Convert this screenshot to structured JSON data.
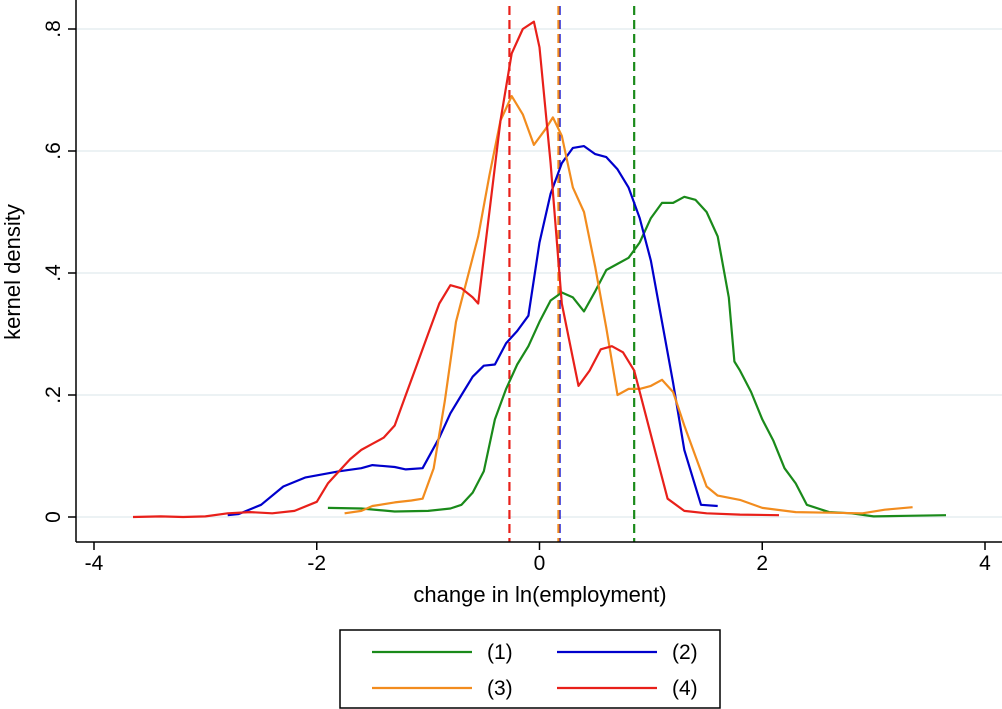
{
  "chart_data": {
    "type": "line",
    "title": "",
    "xlabel": "change in ln(employment)",
    "ylabel": "kernel density",
    "xlim": [
      -4,
      4
    ],
    "ylim": [
      0,
      0.8
    ],
    "x_ticks": [
      -4,
      -2,
      0,
      2,
      4
    ],
    "x_tick_labels": [
      "-4",
      "-2",
      "0",
      "2",
      "4"
    ],
    "y_ticks": [
      0,
      0.2,
      0.4,
      0.6,
      0.8
    ],
    "y_tick_labels": [
      "0",
      ".2",
      ".4",
      ".6",
      ".8"
    ],
    "grid": "horizontal",
    "legend_position": "bottom",
    "series": [
      {
        "name": "(1)",
        "color": "#1a8a1a",
        "mean": 0.85,
        "points": [
          [
            -1.9,
            0.015
          ],
          [
            -1.6,
            0.014
          ],
          [
            -1.3,
            0.009
          ],
          [
            -1.0,
            0.01
          ],
          [
            -0.8,
            0.014
          ],
          [
            -0.7,
            0.02
          ],
          [
            -0.6,
            0.04
          ],
          [
            -0.5,
            0.075
          ],
          [
            -0.4,
            0.16
          ],
          [
            -0.3,
            0.21
          ],
          [
            -0.2,
            0.25
          ],
          [
            -0.1,
            0.28
          ],
          [
            0.0,
            0.32
          ],
          [
            0.1,
            0.355
          ],
          [
            0.2,
            0.368
          ],
          [
            0.3,
            0.36
          ],
          [
            0.4,
            0.337
          ],
          [
            0.5,
            0.37
          ],
          [
            0.6,
            0.405
          ],
          [
            0.7,
            0.415
          ],
          [
            0.8,
            0.425
          ],
          [
            0.9,
            0.45
          ],
          [
            1.0,
            0.49
          ],
          [
            1.1,
            0.515
          ],
          [
            1.2,
            0.515
          ],
          [
            1.3,
            0.525
          ],
          [
            1.4,
            0.52
          ],
          [
            1.5,
            0.5
          ],
          [
            1.6,
            0.46
          ],
          [
            1.7,
            0.36
          ],
          [
            1.75,
            0.255
          ],
          [
            1.8,
            0.24
          ],
          [
            1.9,
            0.205
          ],
          [
            2.0,
            0.16
          ],
          [
            2.1,
            0.125
          ],
          [
            2.2,
            0.08
          ],
          [
            2.3,
            0.055
          ],
          [
            2.4,
            0.02
          ],
          [
            2.6,
            0.008
          ],
          [
            2.8,
            0.006
          ],
          [
            3.0,
            0.001
          ],
          [
            3.3,
            0.002
          ],
          [
            3.65,
            0.003
          ]
        ]
      },
      {
        "name": "(2)",
        "color": "#0000cc",
        "mean": 0.18,
        "points": [
          [
            -2.8,
            0.003
          ],
          [
            -2.7,
            0.005
          ],
          [
            -2.5,
            0.02
          ],
          [
            -2.3,
            0.05
          ],
          [
            -2.1,
            0.065
          ],
          [
            -1.8,
            0.075
          ],
          [
            -1.6,
            0.08
          ],
          [
            -1.5,
            0.085
          ],
          [
            -1.3,
            0.082
          ],
          [
            -1.2,
            0.078
          ],
          [
            -1.05,
            0.08
          ],
          [
            -0.9,
            0.13
          ],
          [
            -0.8,
            0.17
          ],
          [
            -0.7,
            0.2
          ],
          [
            -0.6,
            0.23
          ],
          [
            -0.5,
            0.248
          ],
          [
            -0.4,
            0.25
          ],
          [
            -0.3,
            0.285
          ],
          [
            -0.2,
            0.305
          ],
          [
            -0.1,
            0.33
          ],
          [
            0.0,
            0.45
          ],
          [
            0.1,
            0.53
          ],
          [
            0.2,
            0.58
          ],
          [
            0.3,
            0.605
          ],
          [
            0.4,
            0.608
          ],
          [
            0.5,
            0.595
          ],
          [
            0.6,
            0.59
          ],
          [
            0.7,
            0.57
          ],
          [
            0.8,
            0.54
          ],
          [
            0.9,
            0.49
          ],
          [
            1.0,
            0.42
          ],
          [
            1.1,
            0.32
          ],
          [
            1.2,
            0.22
          ],
          [
            1.3,
            0.11
          ],
          [
            1.45,
            0.02
          ],
          [
            1.6,
            0.018
          ]
        ]
      },
      {
        "name": "(3)",
        "color": "#f28c1e",
        "mean": 0.17,
        "points": [
          [
            -1.75,
            0.006
          ],
          [
            -1.6,
            0.01
          ],
          [
            -1.5,
            0.018
          ],
          [
            -1.3,
            0.024
          ],
          [
            -1.15,
            0.027
          ],
          [
            -1.05,
            0.03
          ],
          [
            -0.95,
            0.08
          ],
          [
            -0.85,
            0.19
          ],
          [
            -0.75,
            0.32
          ],
          [
            -0.65,
            0.39
          ],
          [
            -0.55,
            0.46
          ],
          [
            -0.45,
            0.56
          ],
          [
            -0.35,
            0.65
          ],
          [
            -0.25,
            0.69
          ],
          [
            -0.15,
            0.66
          ],
          [
            -0.05,
            0.61
          ],
          [
            0.05,
            0.635
          ],
          [
            0.12,
            0.655
          ],
          [
            0.2,
            0.625
          ],
          [
            0.3,
            0.54
          ],
          [
            0.4,
            0.5
          ],
          [
            0.5,
            0.41
          ],
          [
            0.6,
            0.31
          ],
          [
            0.7,
            0.2
          ],
          [
            0.8,
            0.21
          ],
          [
            0.9,
            0.21
          ],
          [
            1.0,
            0.215
          ],
          [
            1.1,
            0.225
          ],
          [
            1.2,
            0.205
          ],
          [
            1.3,
            0.15
          ],
          [
            1.4,
            0.1
          ],
          [
            1.5,
            0.05
          ],
          [
            1.6,
            0.035
          ],
          [
            1.8,
            0.028
          ],
          [
            2.0,
            0.015
          ],
          [
            2.3,
            0.008
          ],
          [
            2.6,
            0.007
          ],
          [
            2.9,
            0.006
          ],
          [
            3.1,
            0.012
          ],
          [
            3.35,
            0.016
          ]
        ]
      },
      {
        "name": "(4)",
        "color": "#e8201a",
        "mean": -0.27,
        "points": [
          [
            -3.65,
            0.0
          ],
          [
            -3.4,
            0.001
          ],
          [
            -3.2,
            0.0
          ],
          [
            -3.0,
            0.001
          ],
          [
            -2.8,
            0.006
          ],
          [
            -2.6,
            0.008
          ],
          [
            -2.4,
            0.006
          ],
          [
            -2.2,
            0.01
          ],
          [
            -2.0,
            0.025
          ],
          [
            -1.9,
            0.055
          ],
          [
            -1.8,
            0.075
          ],
          [
            -1.7,
            0.095
          ],
          [
            -1.6,
            0.11
          ],
          [
            -1.5,
            0.12
          ],
          [
            -1.4,
            0.13
          ],
          [
            -1.3,
            0.15
          ],
          [
            -1.2,
            0.2
          ],
          [
            -1.1,
            0.25
          ],
          [
            -1.0,
            0.3
          ],
          [
            -0.9,
            0.35
          ],
          [
            -0.8,
            0.38
          ],
          [
            -0.7,
            0.375
          ],
          [
            -0.6,
            0.36
          ],
          [
            -0.55,
            0.35
          ],
          [
            -0.45,
            0.5
          ],
          [
            -0.35,
            0.65
          ],
          [
            -0.25,
            0.76
          ],
          [
            -0.15,
            0.8
          ],
          [
            -0.05,
            0.812
          ],
          [
            0.0,
            0.77
          ],
          [
            0.1,
            0.58
          ],
          [
            0.2,
            0.35
          ],
          [
            0.3,
            0.26
          ],
          [
            0.35,
            0.215
          ],
          [
            0.45,
            0.24
          ],
          [
            0.55,
            0.275
          ],
          [
            0.65,
            0.28
          ],
          [
            0.75,
            0.27
          ],
          [
            0.85,
            0.24
          ],
          [
            0.95,
            0.17
          ],
          [
            1.05,
            0.1
          ],
          [
            1.15,
            0.03
          ],
          [
            1.3,
            0.01
          ],
          [
            1.5,
            0.006
          ],
          [
            1.8,
            0.004
          ],
          [
            2.15,
            0.003
          ]
        ]
      }
    ],
    "legend_entries": [
      "(1)",
      "(2)",
      "(3)",
      "(4)"
    ]
  }
}
